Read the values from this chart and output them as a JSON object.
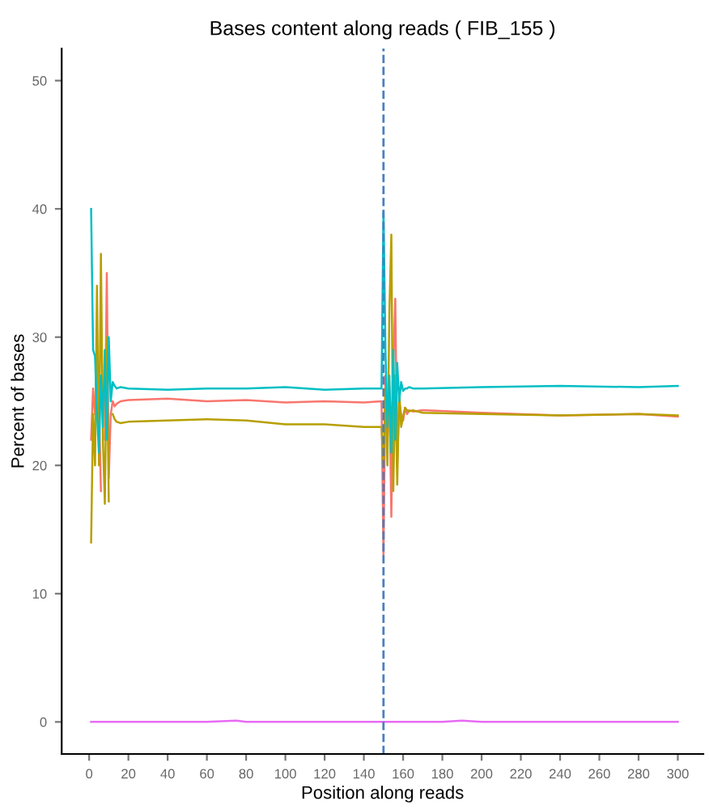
{
  "chart_data": {
    "type": "line",
    "title": "Bases content along reads ( FIB_155 )",
    "xlabel": "Position along reads",
    "ylabel": "Percent of bases",
    "xlim": [
      -14,
      313
    ],
    "ylim": [
      -2.5,
      52.5
    ],
    "xticks": [
      0,
      20,
      40,
      60,
      80,
      100,
      120,
      140,
      160,
      180,
      200,
      220,
      240,
      260,
      280,
      300
    ],
    "yticks": [
      0,
      10,
      20,
      30,
      40,
      50
    ],
    "grid": false,
    "legend": false,
    "marker": "none",
    "line_style": "solid",
    "ref_lines": [
      {
        "axis": "x",
        "value": 150,
        "color": "#4a7fc0",
        "line_style": "dashed"
      }
    ],
    "series": [
      {
        "color": "#f8766d",
        "x": [
          1,
          2,
          3,
          4,
          5,
          6,
          7,
          8,
          9,
          10,
          11,
          12,
          13,
          14,
          16,
          20,
          40,
          60,
          80,
          100,
          120,
          140,
          149,
          150,
          151,
          152,
          153,
          154,
          155,
          156,
          157,
          158,
          159,
          160,
          161,
          162,
          163,
          165,
          170,
          200,
          240,
          280,
          300
        ],
        "values": [
          22,
          26,
          24,
          null,
          25,
          18,
          null,
          22,
          35,
          19,
          24,
          25,
          24.6,
          24.8,
          25,
          25.1,
          25.2,
          25,
          25.1,
          24.9,
          25,
          24.9,
          25,
          13,
          27,
          22,
          26,
          16,
          28,
          33,
          20,
          25,
          24,
          23.5,
          24.5,
          24,
          24.3,
          24.2,
          24.3,
          24.1,
          23.9,
          24,
          23.8
        ]
      },
      {
        "color": "#b79f00",
        "x": [
          1,
          2,
          3,
          4,
          5,
          6,
          7,
          8,
          9,
          10,
          11,
          12,
          13,
          14,
          16,
          20,
          40,
          60,
          80,
          100,
          120,
          140,
          149,
          150,
          151,
          152,
          153,
          154,
          155,
          156,
          157,
          158,
          159,
          160,
          161,
          162,
          163,
          165,
          170,
          200,
          240,
          280,
          300
        ],
        "values": [
          14,
          24,
          20,
          34,
          20,
          36.5,
          22,
          17,
          30,
          17.2,
          null,
          24,
          23.6,
          23.4,
          23.3,
          23.4,
          23.5,
          23.6,
          23.5,
          23.2,
          23.2,
          23,
          23,
          20,
          26,
          20,
          32,
          38,
          18,
          27,
          18.5,
          26,
          23,
          23.8,
          24.5,
          24.3,
          24.2,
          24.3,
          24.1,
          24,
          23.9,
          24,
          23.9
        ]
      },
      {
        "color": "#00bfc4",
        "x": [
          1,
          2,
          3,
          4,
          5,
          6,
          7,
          8,
          9,
          10,
          11,
          12,
          13,
          14,
          16,
          20,
          40,
          60,
          80,
          100,
          120,
          140,
          149,
          150,
          151,
          152,
          153,
          154,
          155,
          156,
          157,
          158,
          159,
          160,
          161,
          162,
          163,
          165,
          170,
          200,
          240,
          280,
          300
        ],
        "values": [
          40,
          29,
          28.5,
          24,
          21,
          27,
          23,
          29,
          22,
          30,
          25,
          26.5,
          26.2,
          26,
          26.1,
          26,
          25.9,
          26,
          26,
          26.1,
          25.9,
          26,
          26,
          39.8,
          29,
          23,
          27,
          21,
          29,
          22,
          28,
          25,
          26.5,
          25.8,
          26,
          26,
          26.1,
          26,
          26,
          26.1,
          26.2,
          26.1,
          26.2
        ]
      },
      {
        "color": "#e76bf3",
        "x": [
          1,
          20,
          40,
          60,
          75,
          80,
          100,
          120,
          140,
          150,
          160,
          180,
          190,
          200,
          240,
          280,
          300
        ],
        "values": [
          0,
          0,
          0,
          0,
          0.1,
          0,
          0,
          0,
          0,
          0,
          0,
          0,
          0.1,
          0,
          0,
          0,
          0
        ]
      }
    ]
  }
}
